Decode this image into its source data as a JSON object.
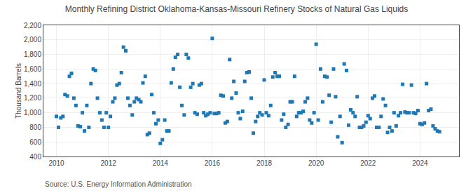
{
  "chart_data": {
    "type": "scatter",
    "title": "Monthly Refining District Oklahoma-Kansas-Missouri Refinery Stocks of Natural Gas Liquids",
    "ylabel": "Thousand Barrels",
    "annotations": [
      "Source: U.S. Energy Information Administration"
    ],
    "marker": "square",
    "grid": true,
    "xlim": [
      2009.5,
      2025.5
    ],
    "xticks": [
      2010,
      2012,
      2014,
      2016,
      2018,
      2020,
      2022,
      2024
    ],
    "ylim": [
      400,
      2200
    ],
    "yticks": [
      400,
      600,
      800,
      {
        "value": 1000,
        "label": "1,000"
      },
      {
        "value": 1200,
        "label": "1,200"
      },
      {
        "value": 1400,
        "label": "1,400"
      },
      {
        "value": 1600,
        "label": "1,600"
      },
      {
        "value": 1800,
        "label": "1,800"
      },
      {
        "value": 2000,
        "label": "2,000"
      },
      {
        "value": 2200,
        "label": "2,200"
      }
    ],
    "x": [
      2010.0,
      2010.08,
      2010.17,
      2010.25,
      2010.33,
      2010.42,
      2010.5,
      2010.58,
      2010.67,
      2010.75,
      2010.83,
      2010.92,
      2011.0,
      2011.08,
      2011.17,
      2011.25,
      2011.33,
      2011.42,
      2011.5,
      2011.58,
      2011.67,
      2011.75,
      2011.83,
      2011.92,
      2012.0,
      2012.08,
      2012.17,
      2012.25,
      2012.33,
      2012.42,
      2012.5,
      2012.58,
      2012.67,
      2012.75,
      2012.83,
      2012.92,
      2013.0,
      2013.08,
      2013.17,
      2013.25,
      2013.33,
      2013.42,
      2013.5,
      2013.58,
      2013.67,
      2013.75,
      2013.83,
      2013.92,
      2014.0,
      2014.08,
      2014.17,
      2014.25,
      2014.33,
      2014.42,
      2014.5,
      2014.58,
      2014.67,
      2014.75,
      2014.83,
      2014.92,
      2015.0,
      2015.08,
      2015.17,
      2015.25,
      2015.33,
      2015.42,
      2015.5,
      2015.58,
      2015.67,
      2015.75,
      2015.83,
      2015.92,
      2016.0,
      2016.08,
      2016.17,
      2016.25,
      2016.33,
      2016.42,
      2016.5,
      2016.58,
      2016.67,
      2016.75,
      2016.83,
      2016.92,
      2017.0,
      2017.08,
      2017.17,
      2017.25,
      2017.33,
      2017.42,
      2017.5,
      2017.58,
      2017.67,
      2017.75,
      2017.83,
      2017.92,
      2018.0,
      2018.08,
      2018.17,
      2018.25,
      2018.33,
      2018.42,
      2018.5,
      2018.58,
      2018.67,
      2018.75,
      2018.83,
      2018.92,
      2019.0,
      2019.08,
      2019.17,
      2019.25,
      2019.33,
      2019.42,
      2019.5,
      2019.58,
      2019.67,
      2019.75,
      2019.83,
      2019.92,
      2020.0,
      2020.08,
      2020.17,
      2020.25,
      2020.33,
      2020.42,
      2020.5,
      2020.58,
      2020.67,
      2020.75,
      2020.83,
      2020.92,
      2021.0,
      2021.08,
      2021.17,
      2021.25,
      2021.33,
      2021.42,
      2021.5,
      2021.58,
      2021.67,
      2021.75,
      2021.83,
      2021.92,
      2022.0,
      2022.08,
      2022.17,
      2022.25,
      2022.33,
      2022.42,
      2022.5,
      2022.58,
      2022.67,
      2022.75,
      2022.83,
      2022.92,
      2023.0,
      2023.08,
      2023.17,
      2023.25,
      2023.33,
      2023.42,
      2023.5,
      2023.58,
      2023.67,
      2023.75,
      2023.83,
      2023.92,
      2024.0,
      2024.08,
      2024.17,
      2024.25,
      2024.33,
      2024.42,
      2024.5,
      2024.58,
      2024.67,
      2024.75
    ],
    "values": [
      950,
      800,
      930,
      950,
      1250,
      1230,
      1500,
      1540,
      1200,
      1100,
      820,
      810,
      1000,
      750,
      1100,
      800,
      1400,
      1600,
      1580,
      1200,
      1000,
      900,
      800,
      1000,
      800,
      950,
      1150,
      1200,
      1380,
      1400,
      1550,
      1900,
      1850,
      1200,
      1100,
      970,
      1150,
      1200,
      1180,
      1150,
      1410,
      1500,
      700,
      720,
      1250,
      1000,
      850,
      900,
      580,
      630,
      900,
      750,
      750,
      1410,
      1600,
      1760,
      1800,
      1350,
      1100,
      970,
      1800,
      1750,
      1350,
      1400,
      1000,
      980,
      1380,
      1400,
      1000,
      960,
      980,
      1000,
      2020,
      990,
      990,
      1000,
      1240,
      1230,
      860,
      880,
      1730,
      1200,
      1430,
      1270,
      1000,
      920,
      1020,
      1430,
      1550,
      1560,
      1200,
      720,
      880,
      950,
      1000,
      970,
      1450,
      1000,
      960,
      1100,
      1490,
      1550,
      1500,
      1500,
      900,
      980,
      800,
      840,
      1150,
      1150,
      1500,
      950,
      1000,
      1000,
      1020,
      1150,
      1200,
      900,
      860,
      1000,
      1940,
      900,
      1600,
      1150,
      1500,
      1490,
      1240,
      870,
      1600,
      1220,
      670,
      950,
      590,
      1670,
      1580,
      830,
      1040,
      1000,
      950,
      1220,
      800,
      800,
      820,
      870,
      960,
      920,
      1200,
      1230,
      800,
      800,
      950,
      1190,
      1100,
      730,
      800,
      750,
      1000,
      820,
      960,
      1000,
      1390,
      1010,
      1000,
      1000,
      1380,
      1000,
      990,
      1030,
      850,
      840,
      860,
      1400,
      1030,
      1050,
      820,
      780,
      750,
      740
    ]
  }
}
